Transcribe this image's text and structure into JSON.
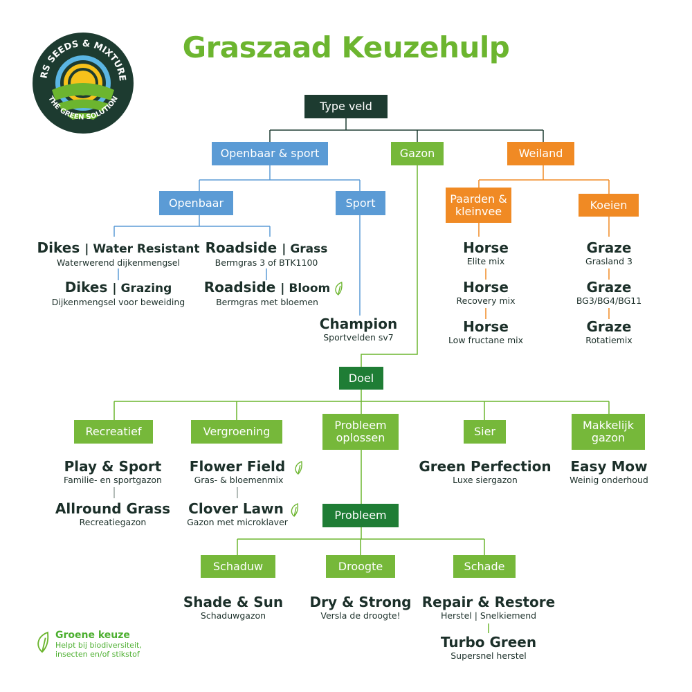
{
  "logo": {
    "top_text": "MRS SEEDS & MIXTURES",
    "bottom_text": "THE GREEN SOLUTION"
  },
  "title": "Graszaad Keuzehulp",
  "colors": {
    "dark": "#1d3b30",
    "blue": "#5b9bd5",
    "green": "#76b83a",
    "orange": "#f08a24",
    "dark_green": "#1f7d35",
    "title": "#6cb52f"
  },
  "nodes": {
    "type_veld": "Type veld",
    "openbaar_sport": "Openbaar & sport",
    "gazon": "Gazon",
    "weiland": "Weiland",
    "openbaar": "Openbaar",
    "sport": "Sport",
    "paarden": "Paarden & kleinvee",
    "koeien": "Koeien",
    "doel": "Doel",
    "recreatief": "Recreatief",
    "vergroening": "Vergroening",
    "probleem_oplossen": "Probleem oplossen",
    "sier": "Sier",
    "makkelijk": "Makkelijk gazon",
    "probleem": "Probleem",
    "schaduw": "Schaduw",
    "droogte": "Droogte",
    "schade": "Schade"
  },
  "products": {
    "dikes_water": {
      "name": "Dikes",
      "suffix": "| Water Resistant",
      "sub": "Waterwerend dijkenmengsel"
    },
    "dikes_grazing": {
      "name": "Dikes",
      "suffix": "| Grazing",
      "sub": "Dijkenmengsel voor beweiding"
    },
    "roadside_grass": {
      "name": "Roadside",
      "suffix": "| Grass",
      "sub": "Bermgras 3 of BTK1100"
    },
    "roadside_bloom": {
      "name": "Roadside",
      "suffix": "| Bloom",
      "sub": "Bermgras met bloemen",
      "green_choice": true
    },
    "champion": {
      "name": "Champion",
      "sub": "Sportvelden sv7"
    },
    "horse1": {
      "name": "Horse",
      "sub": "Elite mix"
    },
    "horse2": {
      "name": "Horse",
      "sub": "Recovery mix"
    },
    "horse3": {
      "name": "Horse",
      "sub": "Low fructane mix"
    },
    "graze1": {
      "name": "Graze",
      "sub": "Grasland 3"
    },
    "graze2": {
      "name": "Graze",
      "sub": "BG3/BG4/BG11"
    },
    "graze3": {
      "name": "Graze",
      "sub": "Rotatiemix"
    },
    "play_sport": {
      "name": "Play & Sport",
      "sub": "Familie- en sportgazon"
    },
    "allround": {
      "name": "Allround Grass",
      "sub": "Recreatiegazon"
    },
    "flower_field": {
      "name": "Flower Field",
      "sub": "Gras- & bloemenmix",
      "green_choice": true
    },
    "clover_lawn": {
      "name": "Clover Lawn",
      "sub": "Gazon met microklaver",
      "green_choice": true
    },
    "green_perfection": {
      "name": "Green Perfection",
      "sub": "Luxe siergazon"
    },
    "easy_mow": {
      "name": "Easy Mow",
      "sub": "Weinig onderhoud"
    },
    "shade_sun": {
      "name": "Shade & Sun",
      "sub": "Schaduwgazon"
    },
    "dry_strong": {
      "name": "Dry & Strong",
      "sub": "Versla de droogte!"
    },
    "repair": {
      "name": "Repair & Restore",
      "sub": "Herstel | Snelkiemend"
    },
    "turbo": {
      "name": "Turbo Green",
      "sub": "Supersnel herstel"
    }
  },
  "legend": {
    "icon": "leaf-icon",
    "title": "Groene keuze",
    "line1": "Helpt bij biodiversiteit,",
    "line2": "insecten en/of stikstof"
  }
}
